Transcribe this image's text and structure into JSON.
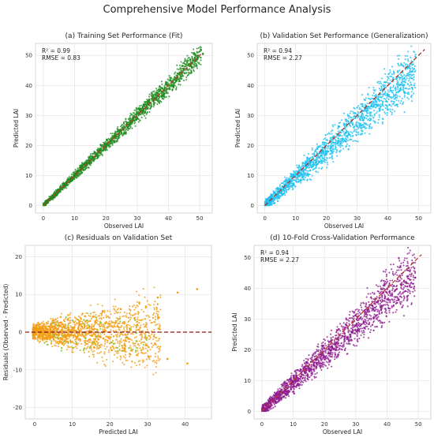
{
  "figure": {
    "title": "Comprehensive Model Performance Analysis"
  },
  "chart_data": [
    {
      "id": "a",
      "type": "scatter",
      "title": "(a) Training Set Performance (Fit)",
      "xlabel": "Observed LAI",
      "ylabel": "Predicted LAI",
      "xlim": [
        -2.5,
        54
      ],
      "ylim": [
        -2.5,
        54
      ],
      "xticks": [
        0,
        10,
        20,
        30,
        40,
        50
      ],
      "yticks": [
        0,
        10,
        20,
        30,
        40,
        50
      ],
      "stats": [
        "R² = 0.99",
        "RMSE = 0.83"
      ],
      "color": "#1e8c1e",
      "reference_line": {
        "x": [
          0,
          51
        ],
        "y": [
          0,
          51
        ],
        "color": "#c0392b",
        "style": "dashed"
      },
      "points": {
        "x": [
          0.5,
          1.8,
          3.2,
          5.1,
          7.4,
          9.8,
          12.3,
          14.9,
          17.6,
          20.4,
          22.9,
          25.6,
          28.1,
          30.7,
          33.5,
          36.2,
          38.9,
          41.4,
          44.1,
          46.8,
          49.2,
          51.0
        ],
        "y": [
          0.6,
          1.7,
          3.3,
          5.0,
          7.6,
          9.6,
          12.5,
          14.7,
          17.8,
          20.2,
          23.1,
          25.4,
          28.3,
          30.5,
          33.8,
          35.9,
          39.2,
          41.1,
          44.4,
          46.5,
          49.0,
          50.5
        ]
      }
    },
    {
      "id": "b",
      "type": "scatter",
      "title": "(b) Validation Set Performance (Generalization)",
      "xlabel": "Observed LAI",
      "ylabel": "Predicted LAI",
      "xlim": [
        -2.5,
        54
      ],
      "ylim": [
        -2.5,
        54
      ],
      "xticks": [
        0,
        10,
        20,
        30,
        40,
        50
      ],
      "yticks": [
        0,
        10,
        20,
        30,
        40,
        50
      ],
      "stats": [
        "R² = 0.94",
        "RMSE = 2.27"
      ],
      "color": "#1ec0f0",
      "reference_line": {
        "x": [
          0,
          52
        ],
        "y": [
          0,
          52
        ],
        "color": "#a93226",
        "style": "dashed"
      },
      "points": {
        "x": [
          0.5,
          2.0,
          4.1,
          6.3,
          8.7,
          11.2,
          13.8,
          16.4,
          18.9,
          21.5,
          24.0,
          26.7,
          29.3,
          31.9,
          34.6,
          37.4,
          40.1,
          42.8,
          45.3,
          47.9
        ],
        "y": [
          1.2,
          3.1,
          5.6,
          6.0,
          10.4,
          9.8,
          15.9,
          14.2,
          21.0,
          19.3,
          26.2,
          23.1,
          30.8,
          28.4,
          33.2,
          31.7,
          36.8,
          33.5,
          37.9,
          39.2
        ]
      }
    },
    {
      "id": "c",
      "type": "scatter",
      "title": "(c) Residuals on Validation Set",
      "xlabel": "Predicted LAI",
      "ylabel": "Residuals (Observed - Predicted)",
      "xlim": [
        -2.5,
        47
      ],
      "ylim": [
        -23,
        23
      ],
      "xticks": [
        0,
        10,
        20,
        30,
        40
      ],
      "yticks": [
        -20,
        -10,
        0,
        10,
        20
      ],
      "color": "#f39c12",
      "reference_line": {
        "x": [
          -2.5,
          47
        ],
        "y": [
          0,
          0
        ],
        "color": "#8b1a1a",
        "style": "dashed"
      },
      "points": {
        "x": [
          0.5,
          2.1,
          4.3,
          6.6,
          8.8,
          11.0,
          13.4,
          15.8,
          18.1,
          20.5,
          22.9,
          25.4,
          27.8,
          30.2,
          32.7,
          35.3,
          38.0,
          40.6,
          43.2
        ],
        "y": [
          0.8,
          -1.2,
          2.1,
          -2.5,
          3.4,
          -3.1,
          4.2,
          -4.0,
          5.6,
          -4.8,
          6.1,
          -5.9,
          7.8,
          -6.4,
          9.2,
          -7.1,
          10.5,
          -8.3,
          11.4
        ]
      }
    },
    {
      "id": "d",
      "type": "scatter",
      "title": "(d) 10-Fold Cross-Validation Performance",
      "xlabel": "Observed LAI",
      "ylabel": "Predicted LAI",
      "xlim": [
        -2.5,
        54
      ],
      "ylim": [
        -2.5,
        54
      ],
      "xticks": [
        0,
        10,
        20,
        30,
        40,
        50
      ],
      "yticks": [
        0,
        10,
        20,
        30,
        40,
        50
      ],
      "stats": [
        "R² = 0.94",
        "RMSE = 2.27"
      ],
      "color": "#8e1a8e",
      "reference_line": {
        "x": [
          0,
          51
        ],
        "y": [
          0,
          51
        ],
        "color": "#c0392b",
        "style": "dashed"
      },
      "points": {
        "x": [
          0.5,
          2.2,
          4.4,
          6.7,
          9.1,
          11.6,
          14.2,
          16.8,
          19.4,
          22.0,
          24.6,
          27.3,
          29.9,
          32.6,
          35.3,
          38.1,
          40.8,
          43.6,
          46.3,
          49.0
        ],
        "y": [
          1.1,
          3.0,
          5.5,
          6.1,
          10.6,
          10.1,
          16.0,
          14.8,
          21.3,
          19.9,
          26.7,
          24.1,
          31.2,
          29.0,
          34.4,
          33.0,
          38.9,
          36.2,
          41.7,
          43.5
        ]
      }
    }
  ]
}
